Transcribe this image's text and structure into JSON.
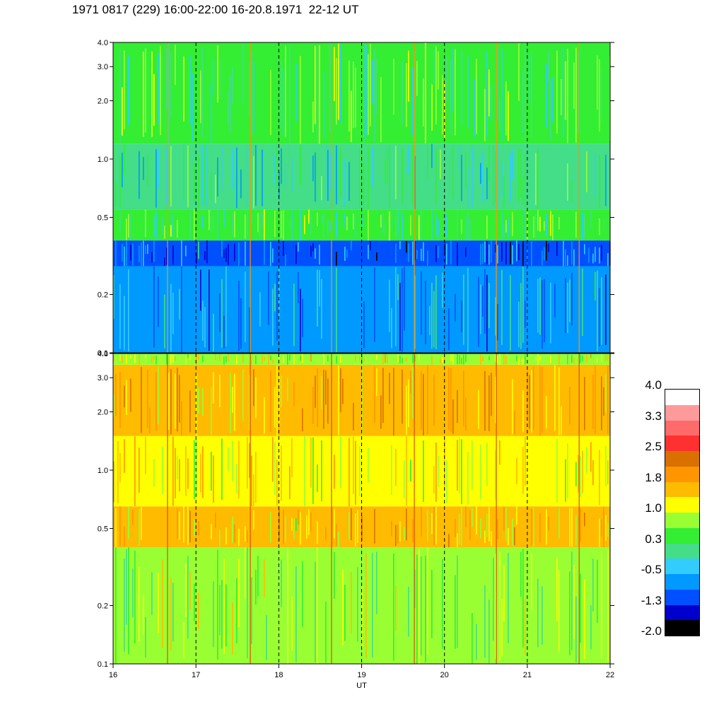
{
  "title": "1971 0817 (229) 16:00-22:00 16-20.8.1971  22-12 UT",
  "chart_data": [
    {
      "type": "heatmap",
      "panel": "top",
      "xlabel": "",
      "ylabel": "",
      "xlim": [
        16,
        22
      ],
      "ylim": [
        0.1,
        4.0
      ],
      "yscale": "log",
      "yticks": [
        0.1,
        0.2,
        0.5,
        1.0,
        2.0,
        3.0,
        4.0
      ],
      "ytick_labels": [
        "0.1",
        "0.2",
        "0.5",
        "1.0",
        "2.0",
        "3.0",
        "4.0"
      ],
      "bands": [
        {
          "from": 0.1,
          "to": 0.28,
          "value": -0.5
        },
        {
          "from": 0.28,
          "to": 0.38,
          "value": -0.9
        },
        {
          "from": 0.38,
          "to": 0.55,
          "value": 0.3
        },
        {
          "from": 0.55,
          "to": 1.2,
          "value": 0.0
        },
        {
          "from": 1.2,
          "to": 4.0,
          "value": 0.4
        }
      ],
      "vertical_dashed_lines": [
        17,
        18,
        19,
        20,
        21
      ]
    },
    {
      "type": "heatmap",
      "panel": "bottom",
      "xlabel": "UT",
      "ylabel": "",
      "xlim": [
        16,
        22
      ],
      "ylim": [
        0.1,
        4.0
      ],
      "yscale": "log",
      "xticks": [
        16,
        17,
        18,
        19,
        20,
        21,
        22
      ],
      "xtick_labels": [
        "16",
        "17",
        "18",
        "19",
        "20",
        "21",
        "22"
      ],
      "yticks": [
        0.1,
        0.2,
        0.5,
        1.0,
        2.0,
        3.0,
        4.0
      ],
      "ytick_labels": [
        "0.1",
        "0.2",
        "0.5",
        "1.0",
        "2.0",
        "3.0",
        "4.0"
      ],
      "bands": [
        {
          "from": 0.1,
          "to": 0.4,
          "value": 0.7
        },
        {
          "from": 0.4,
          "to": 0.65,
          "value": 1.4
        },
        {
          "from": 0.65,
          "to": 1.5,
          "value": 1.2
        },
        {
          "from": 1.5,
          "to": 3.5,
          "value": 1.7
        },
        {
          "from": 3.5,
          "to": 4.0,
          "value": 1.0
        }
      ],
      "vertical_dashed_lines": [
        17,
        18,
        19,
        20,
        21
      ]
    }
  ],
  "colorbar": {
    "labels": [
      "4.0",
      "3.3",
      "2.5",
      "1.8",
      "1.0",
      "0.3",
      "-0.5",
      "-1.3",
      "-2.0"
    ],
    "colors": [
      "#ffffff",
      "#ff9a9a",
      "#ff6a6a",
      "#ff3030",
      "#d97000",
      "#ff9500",
      "#ffbb00",
      "#ffff00",
      "#99ff33",
      "#33ee33",
      "#44dd88",
      "#33ccff",
      "#0099ff",
      "#0050ff",
      "#0000cc",
      "#000000"
    ]
  }
}
